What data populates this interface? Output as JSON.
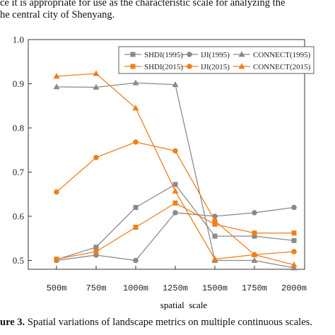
{
  "context_text": {
    "line1": "ce it is appropriate for use as the characteristic scale for analyzing the",
    "line2": "he central city of Shenyang."
  },
  "caption": {
    "label": "ure 3.",
    "text": "Spatial variations of landscape metrics on multiple continuous scales."
  },
  "chart_data": {
    "type": "line",
    "title": "",
    "xlabel": "spatial  scale",
    "ylabel": "",
    "categories": [
      "500m",
      "750m",
      "1000m",
      "1250m",
      "1500m",
      "1750m",
      "2000m"
    ],
    "ylim": [
      0.48,
      1.0
    ],
    "yticks": [
      "0.5",
      "0.6",
      "0.7",
      "0.8",
      "0.9",
      "1.0"
    ],
    "grid": false,
    "legend_position": "top-right",
    "series": [
      {
        "name": "SHDI(1995)",
        "color": "#8a8a8a",
        "marker": "square",
        "values": [
          0.502,
          0.53,
          0.62,
          0.672,
          0.555,
          0.555,
          0.545
        ]
      },
      {
        "name": "IJI(1995)",
        "color": "#8a8a8a",
        "marker": "circle",
        "values": [
          0.5,
          0.512,
          0.5,
          0.608,
          0.6,
          0.608,
          0.62
        ]
      },
      {
        "name": "CONNECT(1995)",
        "color": "#8a8a8a",
        "marker": "triangle",
        "values": [
          0.893,
          0.892,
          0.902,
          0.898,
          0.5,
          0.5,
          0.483
        ]
      },
      {
        "name": "SHDI(2015)",
        "color": "#f07f1a",
        "marker": "square",
        "values": [
          0.503,
          0.52,
          0.575,
          0.63,
          0.582,
          0.562,
          0.562
        ]
      },
      {
        "name": "IJI(2015)",
        "color": "#f07f1a",
        "marker": "circle",
        "values": [
          0.655,
          0.733,
          0.768,
          0.748,
          0.59,
          0.513,
          0.52
        ]
      },
      {
        "name": "CONNECT(2015)",
        "color": "#f07f1a",
        "marker": "triangle",
        "values": [
          0.917,
          0.923,
          0.845,
          0.657,
          0.503,
          0.513,
          0.49
        ]
      }
    ]
  }
}
